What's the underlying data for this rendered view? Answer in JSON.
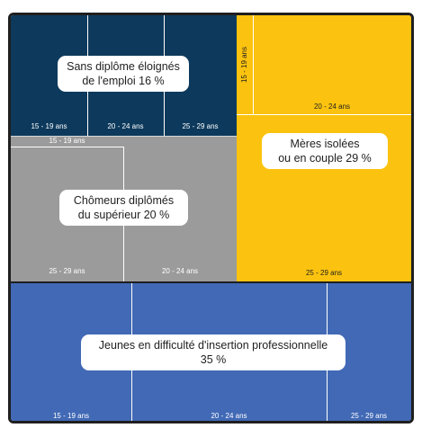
{
  "chart_data": {
    "type": "treemap",
    "segments": [
      {
        "name_lines": [
          "Sans diplôme éloignés",
          "de l'emploi 16 %"
        ],
        "value": 16,
        "color": "#0d3a5c",
        "label_color": "#ffffff",
        "age_groups": [
          "15 - 19 ans",
          "20 - 24 ans",
          "25 - 29 ans"
        ]
      },
      {
        "name_lines": [
          "Mères isolées",
          "ou en couple 29 %"
        ],
        "value": 29,
        "color": "#fbc30f",
        "label_color": "#1f1f1f",
        "age_groups": [
          "15 - 19 ans",
          "20 - 24 ans",
          "25 - 29 ans"
        ]
      },
      {
        "name_lines": [
          "Chômeurs diplômés",
          "du supérieur 20 %"
        ],
        "value": 20,
        "color": "#9b9b9b",
        "label_color": "#ffffff",
        "age_groups": [
          "15 - 19 ans",
          "25 - 29 ans",
          "20 - 24 ans"
        ]
      },
      {
        "name_lines": [
          "Jeunes en difficulté d'insertion professionnelle",
          "35 %"
        ],
        "value": 35,
        "color": "#4169b5",
        "label_color": "#ffffff",
        "age_groups": [
          "15 - 19 ans",
          "20 - 24 ans",
          "25 - 29 ans"
        ]
      }
    ]
  }
}
